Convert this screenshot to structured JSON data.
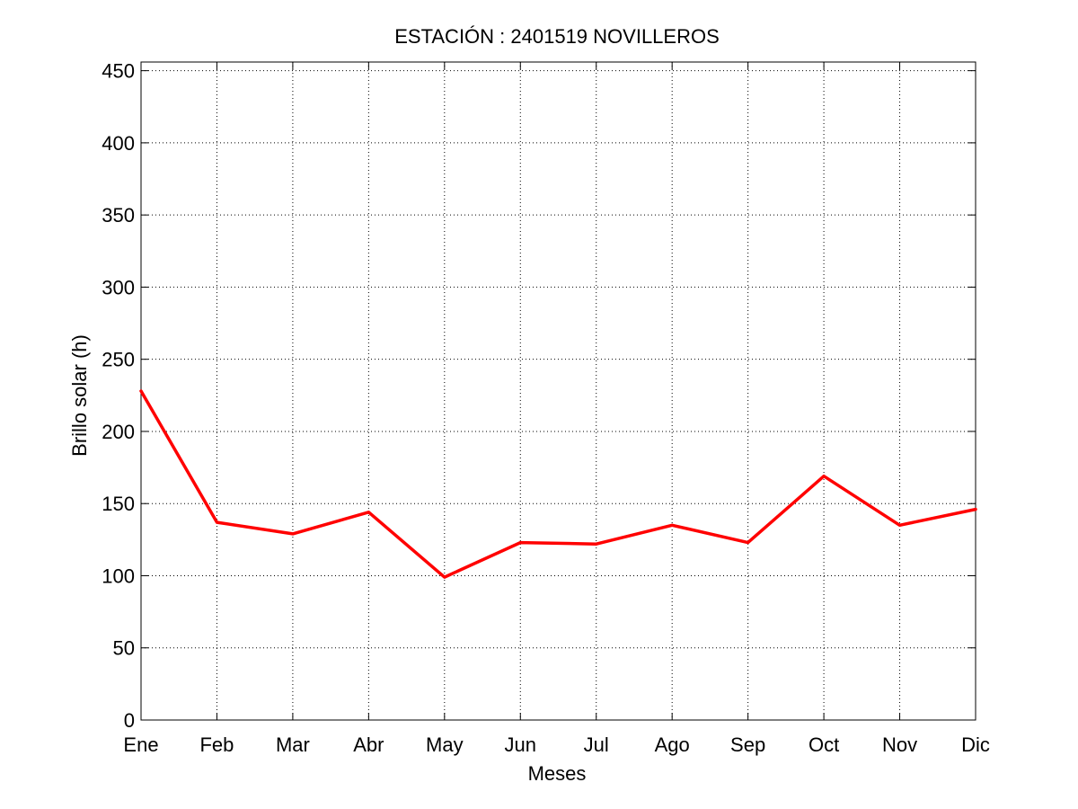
{
  "chart_data": {
    "type": "line",
    "title": "ESTACIÓN :  2401519  NOVILLEROS",
    "xlabel": "Meses",
    "ylabel": "Brillo solar (h)",
    "categories": [
      "Ene",
      "Feb",
      "Mar",
      "Abr",
      "May",
      "Jun",
      "Jul",
      "Ago",
      "Sep",
      "Oct",
      "Nov",
      "Dic"
    ],
    "series": [
      {
        "values": [
          228,
          137,
          129,
          144,
          99,
          123,
          122,
          135,
          123,
          169,
          135,
          146
        ],
        "color": "#ff0000"
      }
    ],
    "ylim": [
      0,
      456
    ],
    "yticks": [
      0,
      50,
      100,
      150,
      200,
      250,
      300,
      350,
      400,
      450
    ],
    "grid": true,
    "legend": "none"
  }
}
